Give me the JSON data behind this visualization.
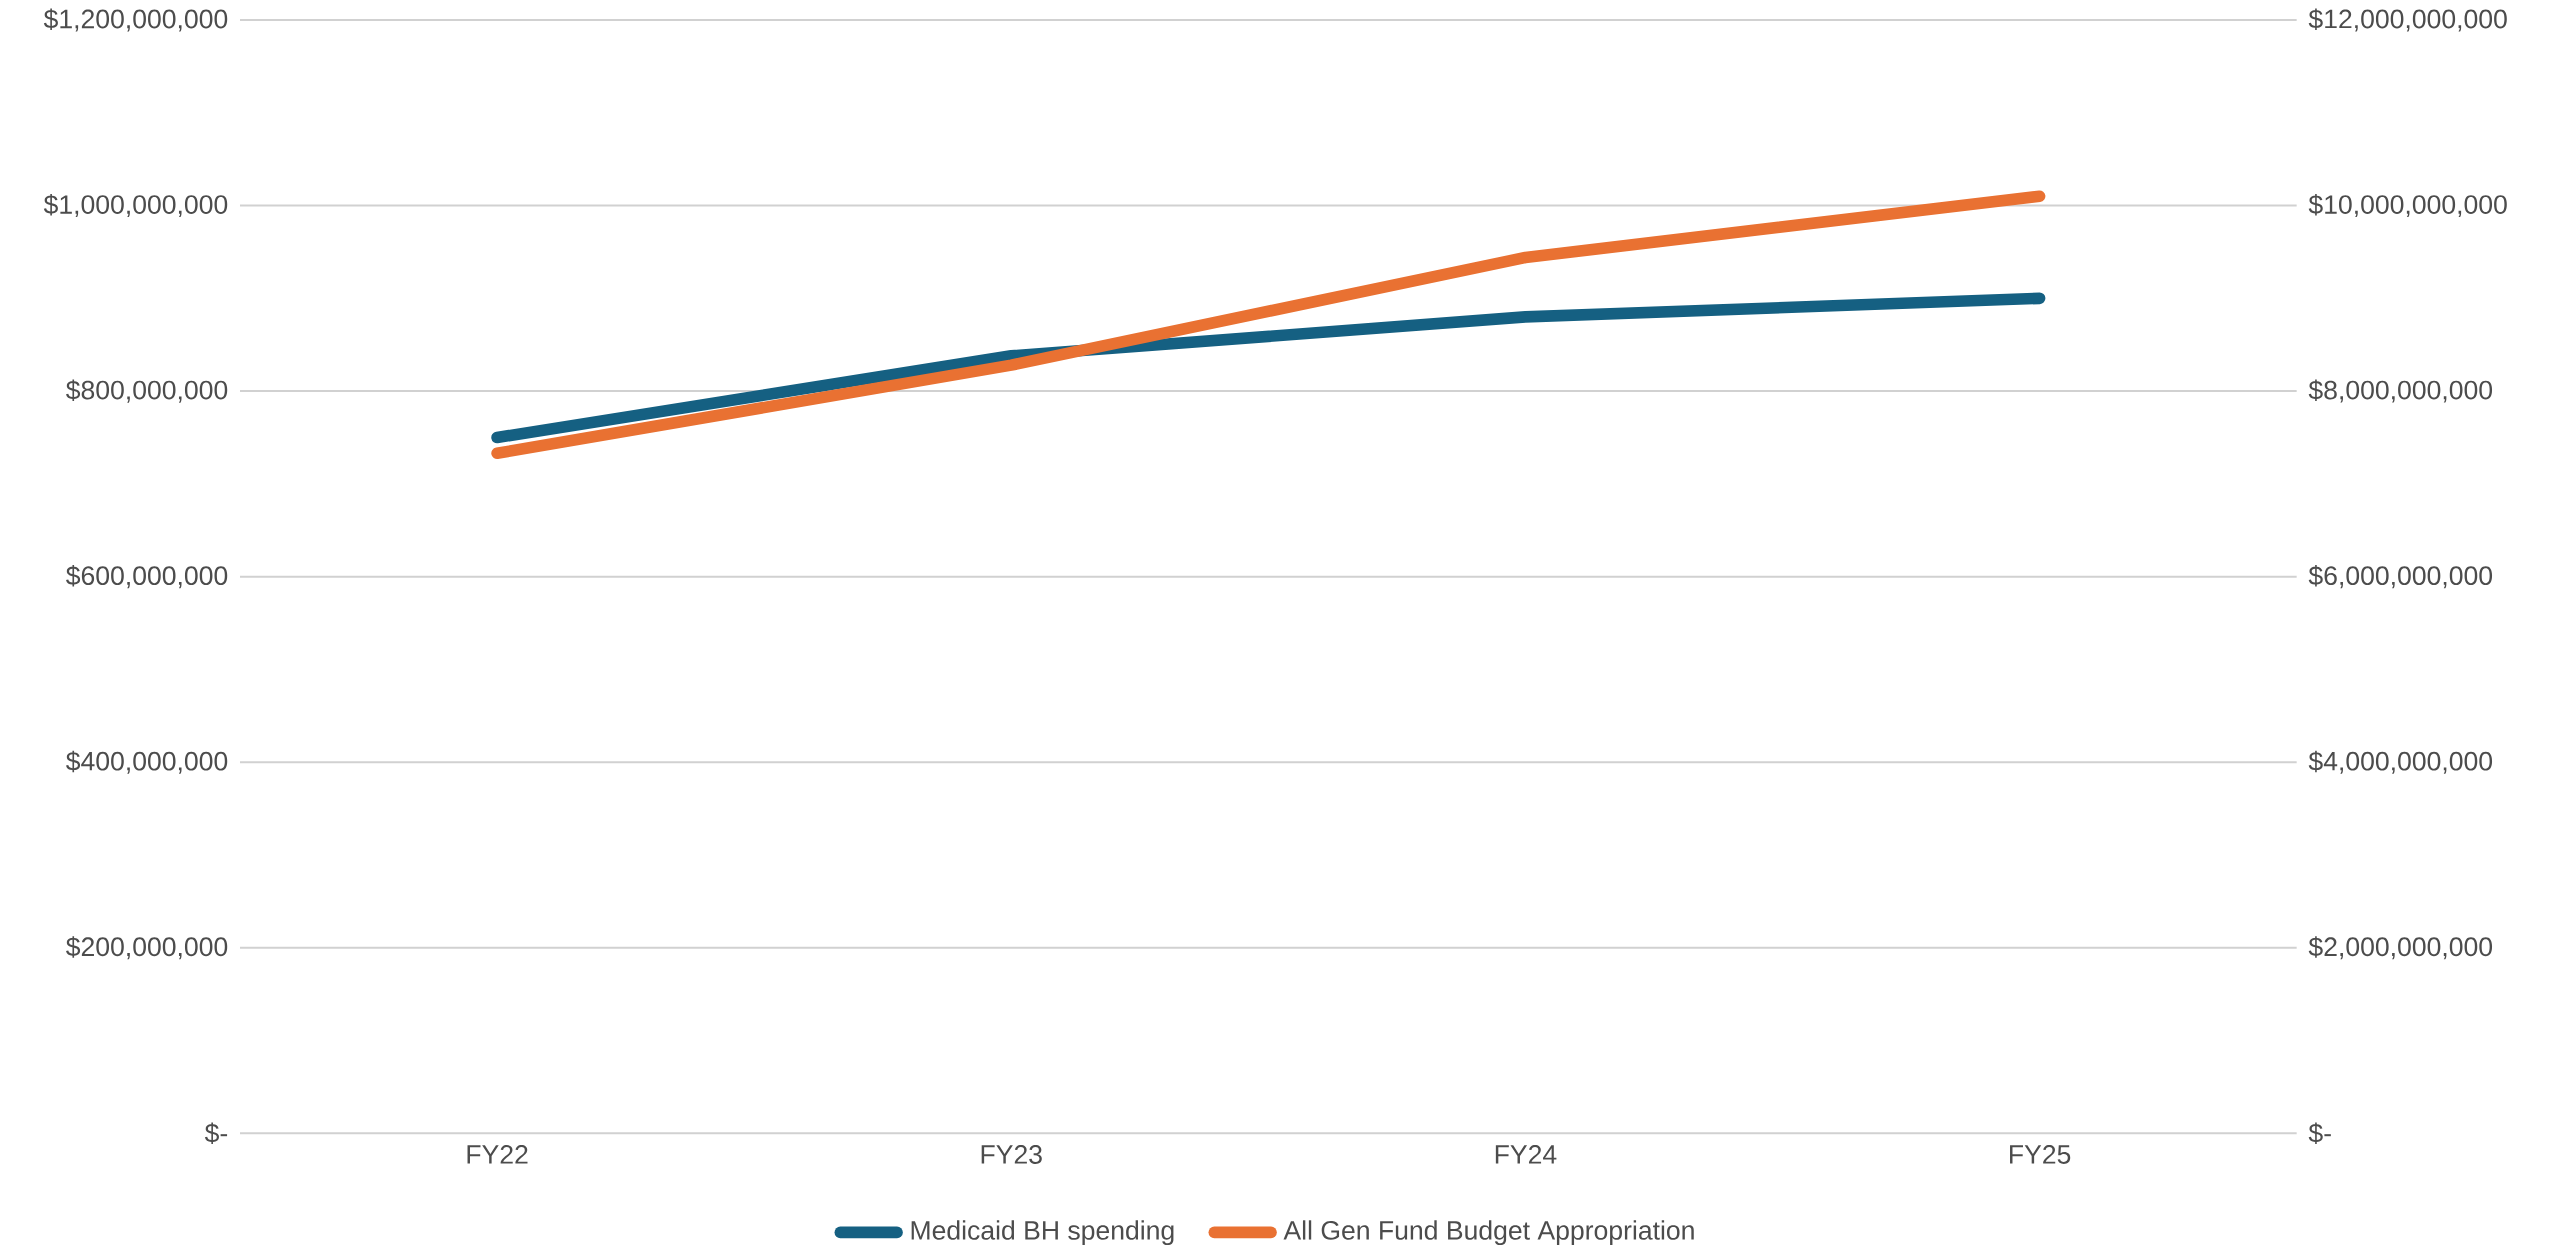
{
  "chart_data": {
    "type": "line",
    "categories": [
      "FY22",
      "FY23",
      "FY24",
      "FY25"
    ],
    "series": [
      {
        "name": "Medicaid BH spending",
        "color": "#156082",
        "values": [
          750000000,
          838000000,
          880000000,
          900000000
        ]
      },
      {
        "name": "All Gen Fund Budget Appropriation",
        "color": "#e97132",
        "axis": "y2",
        "values": [
          7330000000,
          8280000000,
          9440000000,
          10100000000
        ]
      }
    ],
    "ylim": [
      0,
      1200000000
    ],
    "yticks": [
      {
        "value": 0,
        "label": "$-"
      },
      {
        "value": 200000000,
        "label": "$200,000,000"
      },
      {
        "value": 400000000,
        "label": "$400,000,000"
      },
      {
        "value": 600000000,
        "label": "$600,000,000"
      },
      {
        "value": 800000000,
        "label": "$800,000,000"
      },
      {
        "value": 1000000000,
        "label": "$1,000,000,000"
      },
      {
        "value": 1200000000,
        "label": "$1,200,000,000"
      }
    ],
    "y2lim": [
      0,
      12000000000
    ],
    "y2ticks": [
      {
        "value": 0,
        "label": "$-"
      },
      {
        "value": 2000000000,
        "label": "$2,000,000,000"
      },
      {
        "value": 4000000000,
        "label": "$4,000,000,000"
      },
      {
        "value": 6000000000,
        "label": "$6,000,000,000"
      },
      {
        "value": 8000000000,
        "label": "$8,000,000,000"
      },
      {
        "value": 10000000000,
        "label": "$10,000,000,000"
      },
      {
        "value": 12000000000,
        "label": "$12,000,000,000"
      }
    ],
    "grid": "y",
    "legend": "bottom",
    "marker": "none",
    "line_style": "solid"
  }
}
